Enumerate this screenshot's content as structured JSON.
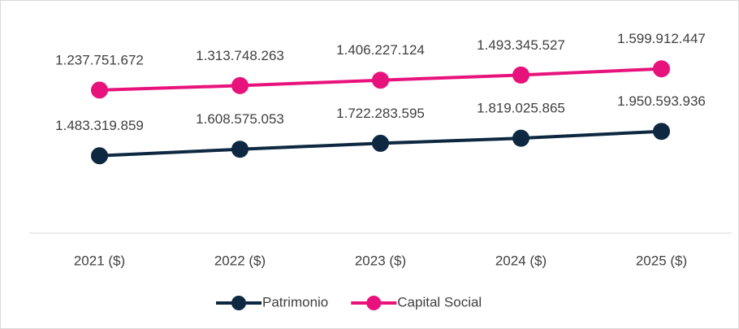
{
  "chart_data": {
    "type": "line",
    "categories": [
      "2021 ($)",
      "2022 ($)",
      "2023 ($)",
      "2024 ($)",
      "2025 ($)"
    ],
    "series": [
      {
        "name": "Patrimonio",
        "color": "#0e2841",
        "values": [
          1483319859,
          1608575053,
          1722283595,
          1819025865,
          1950593936
        ],
        "value_labels": [
          "1.483.319.859",
          "1.608.575.053",
          "1.722.283.595",
          "1.819.025.865",
          "1.950.593.936"
        ]
      },
      {
        "name": "Capital Social",
        "color": "#e8127c",
        "axis": "y2",
        "values": [
          1237751672,
          1313748263,
          1406227124,
          1493345527,
          1599912447
        ],
        "value_labels": [
          "1.237.751.672",
          "1.313.748.263",
          "1.406.227.124",
          "1.493.345.527",
          "1.599.912.447"
        ]
      }
    ],
    "ylim": [
      0,
      4500000000
    ],
    "y2lim": [
      -1200000000,
      2800000000
    ],
    "legend": "bottom"
  }
}
